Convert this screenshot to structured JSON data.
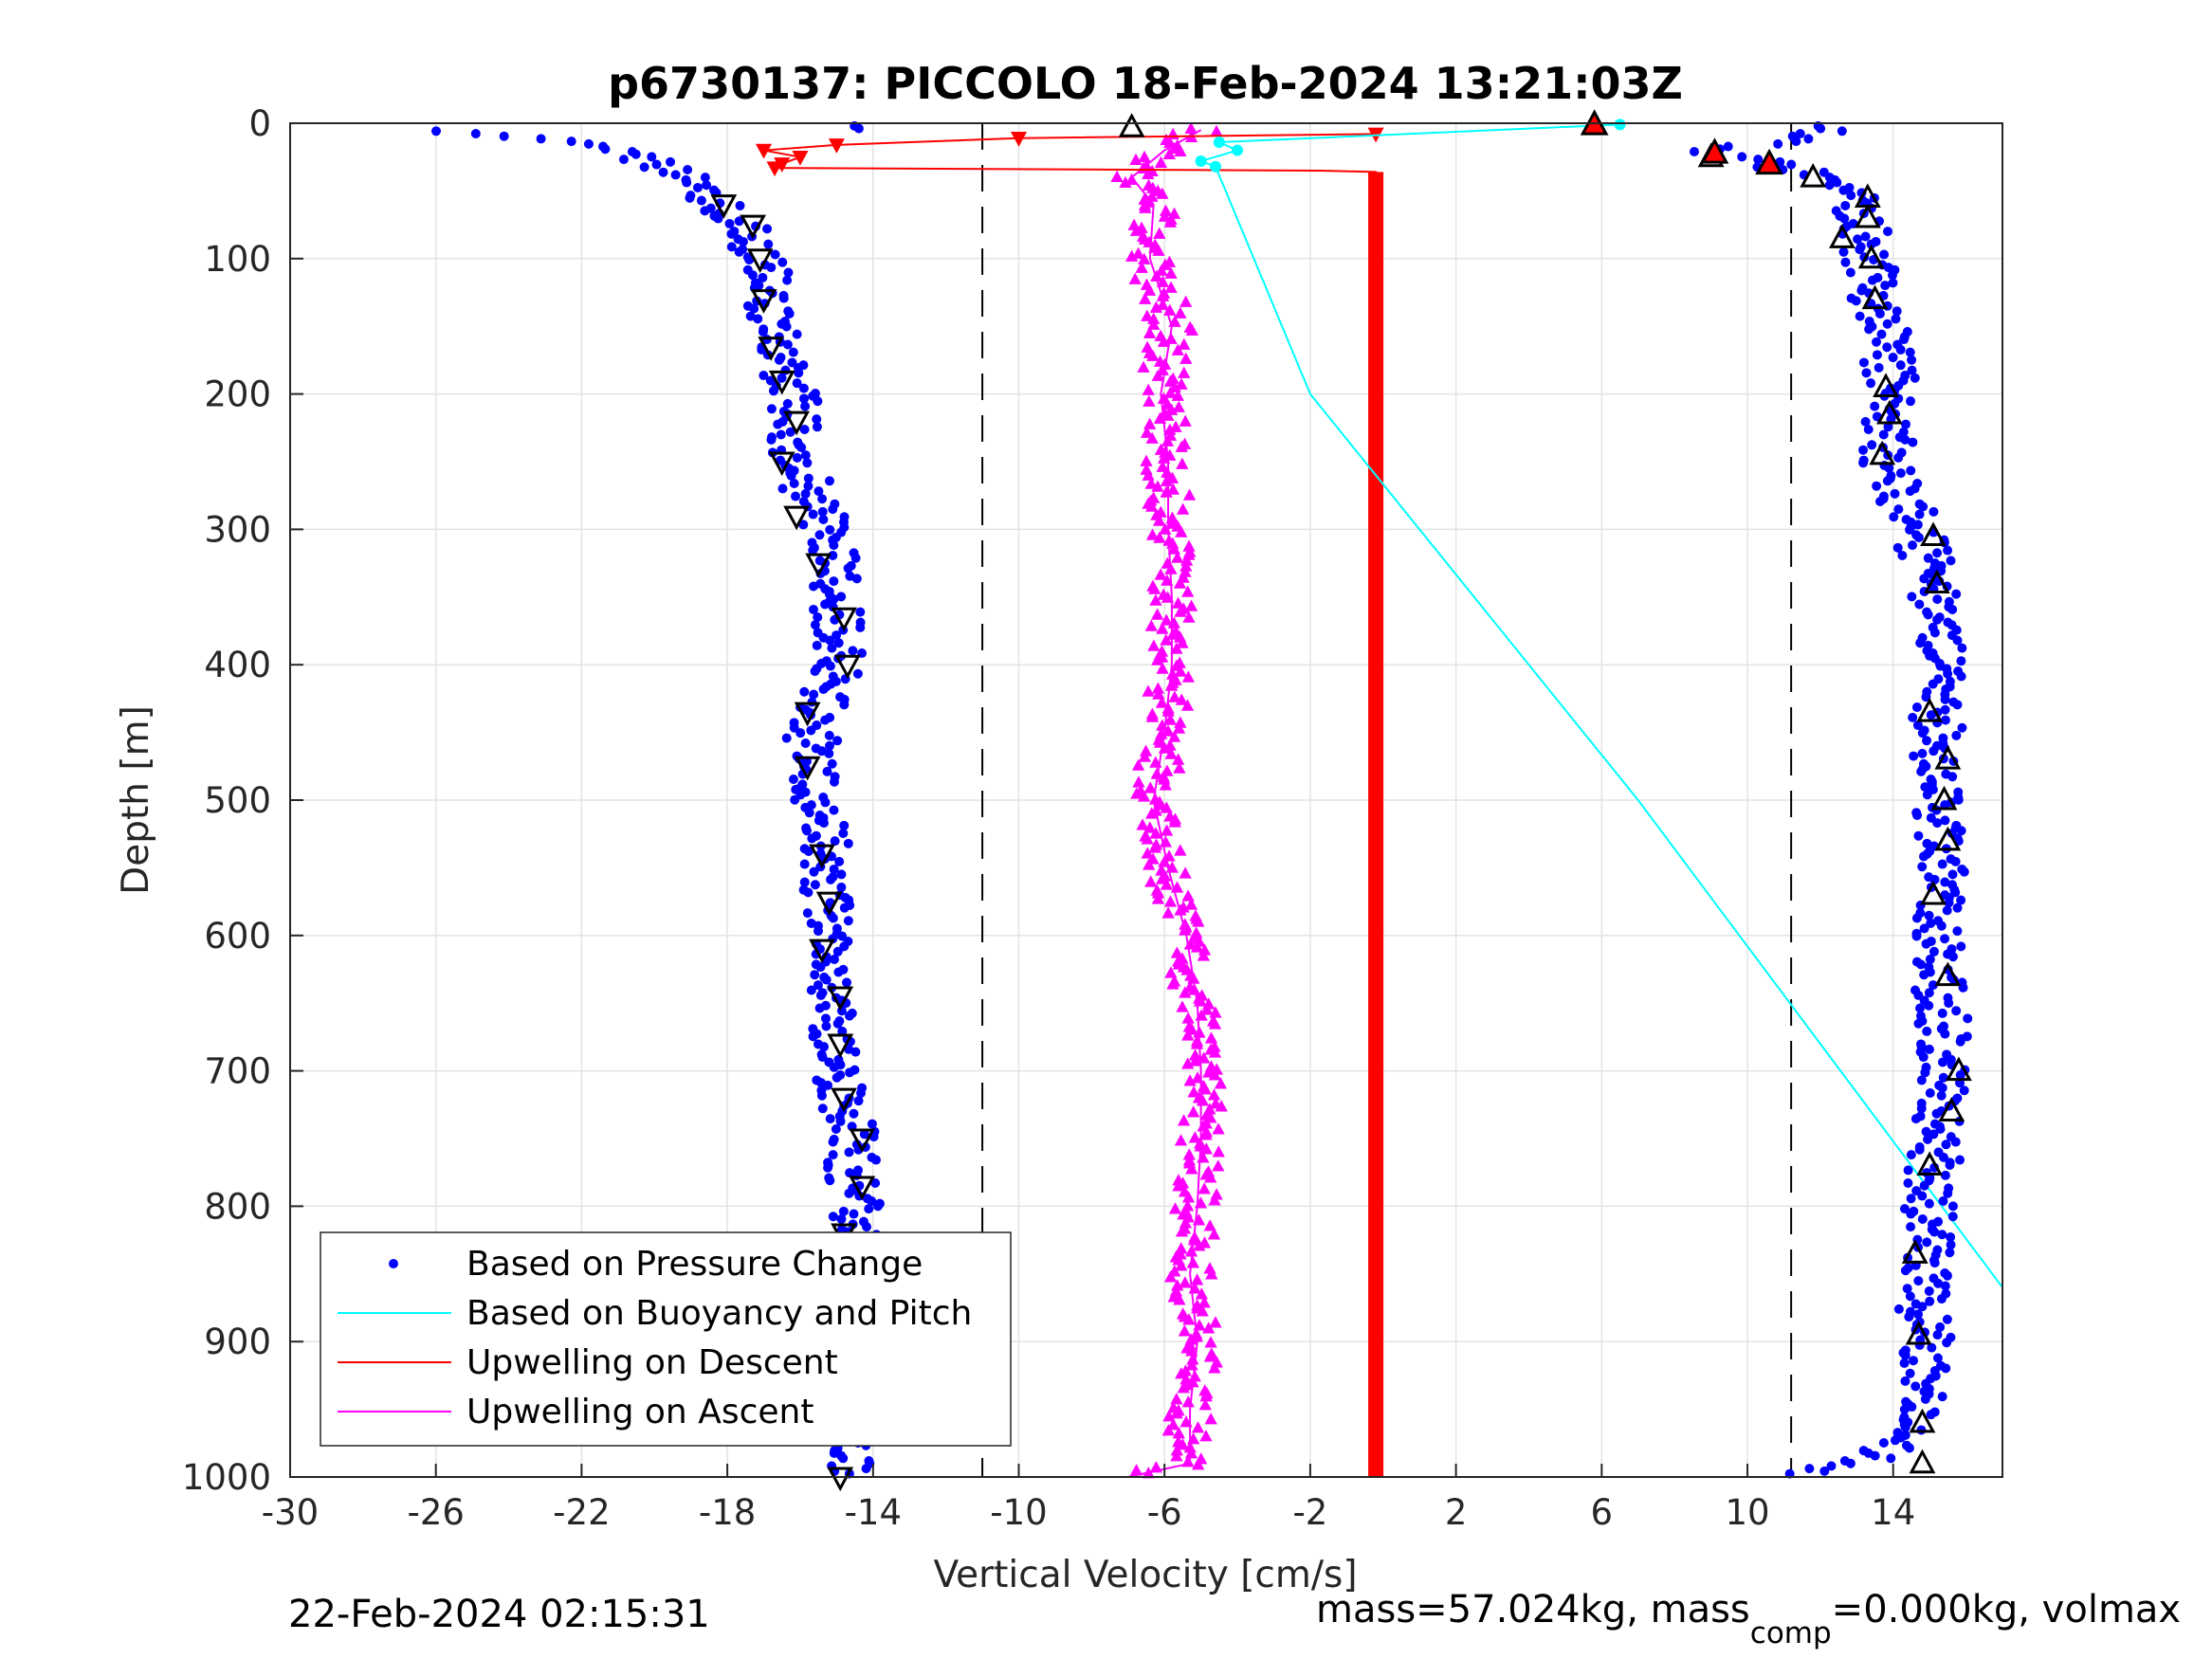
{
  "chart_data": {
    "type": "scatter",
    "title": "p6730137: PICCOLO 18-Feb-2024 13:21:03Z",
    "xlabel": "Vertical Velocity [cm/s]",
    "ylabel": "Depth [m]",
    "xlim": [
      -30,
      17
    ],
    "ylim": [
      0,
      1000
    ],
    "y_reversed": true,
    "grid": true,
    "xticks": [
      -30,
      -26,
      -22,
      -18,
      -14,
      -10,
      -6,
      -2,
      2,
      6,
      10,
      14
    ],
    "xtick_labels": [
      "-30",
      "-26",
      "-22",
      "-18",
      "-14",
      "-10",
      "-6",
      "-2",
      "2",
      "6",
      "10",
      "14"
    ],
    "yticks": [
      0,
      100,
      200,
      300,
      400,
      500,
      600,
      700,
      800,
      900,
      1000
    ],
    "ytick_labels": [
      "0",
      "100",
      "200",
      "300",
      "400",
      "500",
      "600",
      "700",
      "800",
      "900",
      "1000"
    ],
    "reference_lines_x": [
      -11,
      11.2
    ],
    "legend_placement": "bottom-left",
    "legend": [
      {
        "label": "Based on Pressure Change",
        "color": "#0000ff",
        "style": "dot"
      },
      {
        "label": "Based on Buoyancy and Pitch",
        "color": "#00ffff",
        "style": "line"
      },
      {
        "label": "Upwelling on Descent",
        "color": "#ff0000",
        "style": "line"
      },
      {
        "label": "Upwelling on Ascent",
        "color": "#ff00ff",
        "style": "line"
      }
    ],
    "series": [
      {
        "name": "Based on Pressure Change",
        "color": "#0000ff",
        "segments": [
          {
            "label": "descent",
            "depth": [
              5,
              10,
              15,
              25,
              40,
              60,
              80,
              100,
              150,
              200,
              250,
              300,
              350,
              400,
              450,
              500,
              550,
              600,
              650,
              700,
              750,
              800,
              850,
              900,
              950,
              1000
            ],
            "velocity": [
              -27,
              -24,
              -22,
              -20.5,
              -19,
              -18.3,
              -17.5,
              -17.1,
              -16.6,
              -16.2,
              -16.1,
              -15.3,
              -15.0,
              -15.0,
              -15.7,
              -15.5,
              -15.2,
              -15.3,
              -15.0,
              -14.9,
              -14.6,
              -14.5,
              -14.6,
              -14.8,
              -14.7,
              -14.6
            ]
          },
          {
            "label": "ascent",
            "depth": [
              1000,
              990,
              970,
              950,
              900,
              850,
              800,
              750,
              700,
              650,
              600,
              550,
              500,
              450,
              400,
              350,
              300,
              250,
              200,
              150,
              100,
              70,
              50,
              40,
              30,
              20,
              10,
              5
            ],
            "velocity": [
              11,
              13,
              14.6,
              14.8,
              14.9,
              14.8,
              15.0,
              15.2,
              15.5,
              15.3,
              15.2,
              15.3,
              15.2,
              15.2,
              15.3,
              15.1,
              14.7,
              13.8,
              14.0,
              13.7,
              13.3,
              13.1,
              13.0,
              12.0,
              10.5,
              9.0,
              11.5,
              12.5
            ]
          }
        ]
      },
      {
        "name": "Based on Buoyancy and Pitch",
        "color": "#00ffff",
        "depth": [
          1,
          14,
          20,
          28,
          32,
          200,
          500,
          860
        ],
        "velocity": [
          6.5,
          -4.5,
          -4.0,
          -5.0,
          -4.6,
          -2.0,
          7.0,
          17.0
        ]
      },
      {
        "name": "Upwelling on Descent",
        "color": "#ff0000",
        "depth": [
          8,
          11,
          16,
          20,
          25,
          30,
          33,
          35,
          36,
          100,
          200,
          300,
          400,
          500,
          600,
          700,
          800,
          900,
          1000
        ],
        "velocity": [
          -0.2,
          -10,
          -15,
          -17,
          -16,
          -16.5,
          -16.7,
          -1.8,
          -0.2,
          -0.2,
          -0.2,
          -0.2,
          -0.2,
          -0.2,
          -0.2,
          -0.2,
          -0.2,
          -0.2,
          -0.2
        ]
      },
      {
        "name": "Upwelling on Ascent",
        "color": "#ff00ff",
        "depth": [
          1000,
          990,
          950,
          900,
          850,
          800,
          750,
          700,
          650,
          600,
          550,
          500,
          450,
          400,
          350,
          300,
          250,
          200,
          150,
          100,
          60,
          40,
          20,
          5
        ],
        "velocity": [
          -7.0,
          -5.3,
          -5.3,
          -5.1,
          -5.3,
          -5.1,
          -5.0,
          -5.0,
          -5.1,
          -5.4,
          -5.9,
          -6.3,
          -6.0,
          -5.8,
          -5.8,
          -5.9,
          -5.9,
          -6.1,
          -5.8,
          -6.4,
          -6.3,
          -6.9,
          -6.0,
          -5.0
        ]
      }
    ],
    "markers": {
      "open_triangles_descent": [
        [
          -18.1,
          60
        ],
        [
          -17.3,
          75
        ],
        [
          -17.1,
          100
        ],
        [
          -17.0,
          130
        ],
        [
          -16.8,
          165
        ],
        [
          -16.5,
          190
        ],
        [
          -16.1,
          220
        ],
        [
          -16.5,
          250
        ],
        [
          -16.1,
          290
        ],
        [
          -15.5,
          325
        ],
        [
          -14.8,
          365
        ],
        [
          -14.7,
          400
        ],
        [
          -15.8,
          435
        ],
        [
          -15.8,
          475
        ],
        [
          -15.4,
          540
        ],
        [
          -15.2,
          575
        ],
        [
          -15.4,
          610
        ],
        [
          -14.9,
          645
        ],
        [
          -14.9,
          680
        ],
        [
          -14.8,
          720
        ],
        [
          -14.3,
          750
        ],
        [
          -14.3,
          785
        ],
        [
          -14.8,
          820
        ],
        [
          -14.6,
          855
        ],
        [
          -14.6,
          890
        ],
        [
          -14.8,
          925
        ],
        [
          -14.9,
          960
        ],
        [
          -14.9,
          1000
        ]
      ],
      "open_triangles_ascent": [
        [
          14.8,
          990
        ],
        [
          14.8,
          960
        ],
        [
          14.7,
          895
        ],
        [
          14.6,
          835
        ],
        [
          15.0,
          770
        ],
        [
          15.6,
          730
        ],
        [
          15.8,
          700
        ],
        [
          15.5,
          630
        ],
        [
          15.1,
          570
        ],
        [
          15.5,
          530
        ],
        [
          15.4,
          500
        ],
        [
          15.5,
          470
        ],
        [
          15.0,
          435
        ],
        [
          15.2,
          340
        ],
        [
          15.1,
          305
        ],
        [
          13.7,
          245
        ],
        [
          13.9,
          215
        ],
        [
          13.8,
          195
        ],
        [
          13.5,
          130
        ],
        [
          13.4,
          100
        ],
        [
          12.6,
          85
        ],
        [
          13.3,
          70
        ],
        [
          13.3,
          55
        ],
        [
          11.8,
          40
        ],
        [
          9.0,
          25
        ],
        [
          -6.9,
          3
        ]
      ],
      "filled_red_triangles": [
        [
          5.8,
          1
        ],
        [
          9.1,
          22
        ],
        [
          10.6,
          30
        ]
      ]
    }
  },
  "footer": {
    "timestamp": "22-Feb-2024 02:15:31",
    "mass_prefix": "mass=57.024kg, mass",
    "mass_subscript": "comp",
    "mass_suffix": "=0.000kg, volmax"
  }
}
